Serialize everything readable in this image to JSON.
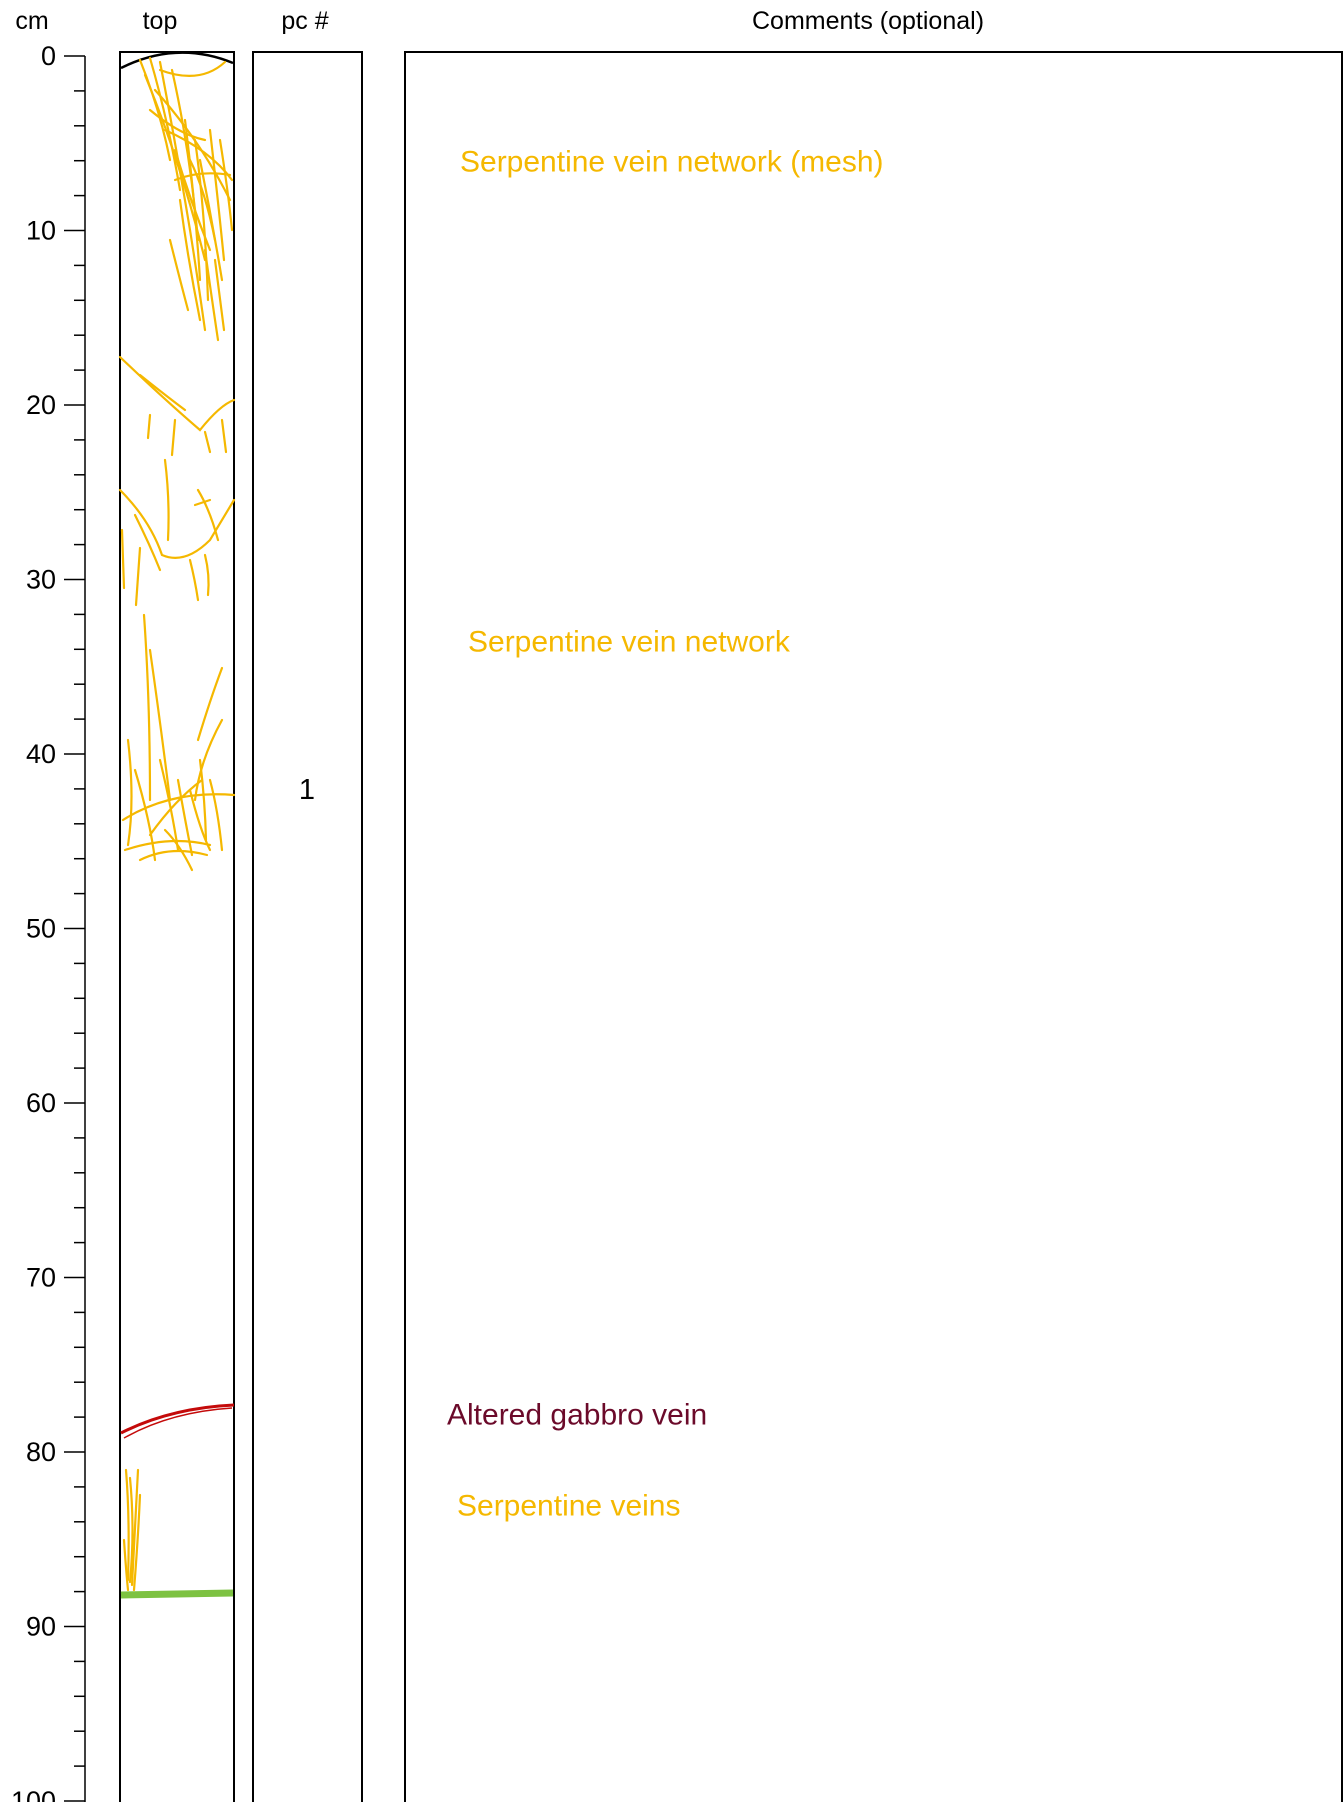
{
  "headers": {
    "depth": "cm",
    "core": "top",
    "piece": "pc #",
    "comments": "Comments (optional)"
  },
  "depth_scale": {
    "min": 0,
    "max": 100,
    "major_step": 10,
    "minor_step": 2,
    "labels": [
      "0",
      "10",
      "20",
      "30",
      "40",
      "50",
      "60",
      "70",
      "80",
      "90",
      "100"
    ]
  },
  "piece_label": {
    "text": "1",
    "depth_cm": 42
  },
  "comments": [
    {
      "text": "Serpentine vein network (mesh)",
      "depth_cm": 6,
      "color": "#F5B800"
    },
    {
      "text": "Serpentine vein network",
      "depth_cm": 33.5,
      "color": "#F5B800"
    },
    {
      "text": "Altered gabbro vein",
      "depth_cm": 77.8,
      "color": "#6B0A2A"
    },
    {
      "text": "Serpentine veins",
      "depth_cm": 83,
      "color": "#F5B800"
    }
  ],
  "colors": {
    "serpentine": "#F5B800",
    "altered_gabbro": "#C40A0A",
    "green_band": "#7DC242",
    "outline": "#000000"
  }
}
